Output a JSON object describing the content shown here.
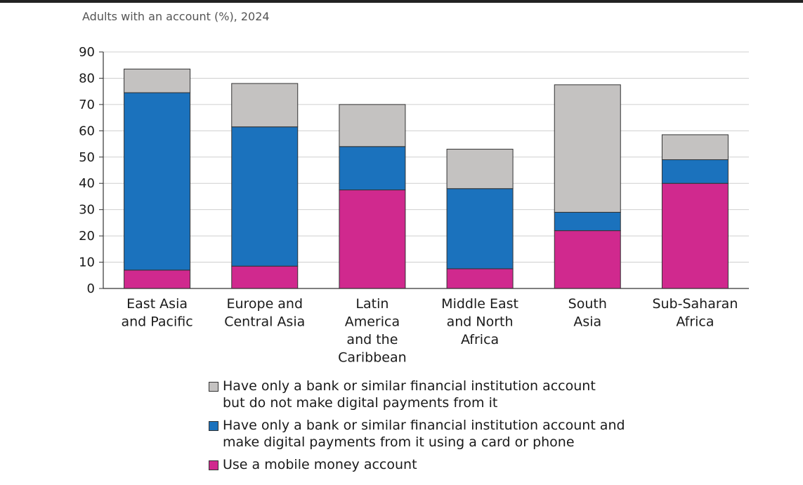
{
  "chart_data": {
    "type": "bar",
    "stacked": true,
    "title": "Adults with an account (%), 2024",
    "xlabel": "",
    "ylabel": "",
    "ylim": [
      0,
      90
    ],
    "yticks": [
      0,
      10,
      20,
      30,
      40,
      50,
      60,
      70,
      80,
      90
    ],
    "grid": true,
    "categories": [
      "East Asia\nand Pacific",
      "Europe and\nCentral Asia",
      "Latin\nAmerica\nand the\nCaribbean",
      "Middle East\nand North\nAfrica",
      "South\nAsia",
      "Sub-Saharan\nAfrica"
    ],
    "series": [
      {
        "name": "Use a mobile money account",
        "color": "#d0298e",
        "values": [
          7,
          8.5,
          37.5,
          7.5,
          22,
          40
        ]
      },
      {
        "name": "Have only a bank or similar financial institution account and\nmake digital payments from it using a card or phone",
        "color": "#1b72bd",
        "values": [
          67.5,
          53,
          16.5,
          30.5,
          7,
          9
        ]
      },
      {
        "name": "Have only a bank or similar financial institution account\nbut do not make digital payments from it",
        "color": "#c4c2c1",
        "values": [
          9,
          16.5,
          16,
          15,
          48.5,
          9.5
        ]
      }
    ],
    "legend_order": [
      2,
      1,
      0
    ],
    "legend_position": "bottom"
  }
}
